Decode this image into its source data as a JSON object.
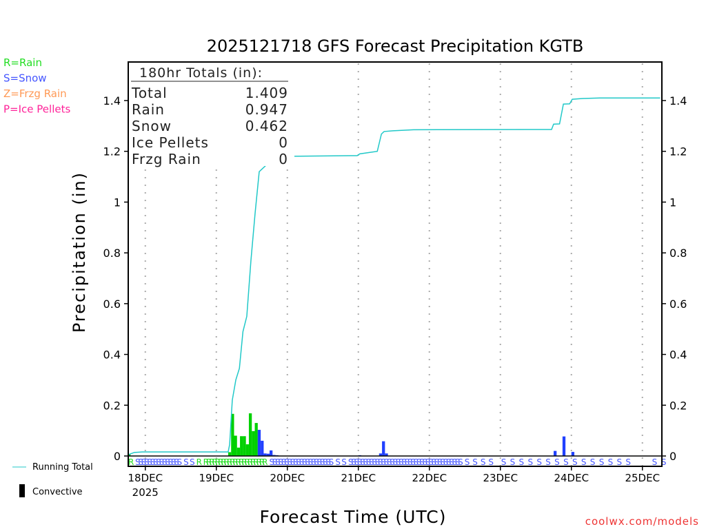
{
  "chart_data": {
    "type": "bar",
    "title": "2025121718 GFS Forecast Precipitation KGTB",
    "xlabel": "Forecast Time (UTC)",
    "ylabel": "Precipitation (in)",
    "ylim": [
      0,
      1.55
    ],
    "xlim_hours": [
      0,
      180
    ],
    "yticks": [
      "0",
      "0.2",
      "0.4",
      "0.6",
      "0.8",
      "1",
      "1.2",
      "1.4"
    ],
    "ytick_values": [
      0,
      0.2,
      0.4,
      0.6,
      0.8,
      1.0,
      1.2,
      1.4
    ],
    "xticks": [
      {
        "hour": 6,
        "label": "18DEC",
        "sub": "2025"
      },
      {
        "hour": 30,
        "label": "19DEC"
      },
      {
        "hour": 54,
        "label": "20DEC"
      },
      {
        "hour": 78,
        "label": "21DEC"
      },
      {
        "hour": 102,
        "label": "22DEC"
      },
      {
        "hour": 126,
        "label": "23DEC"
      },
      {
        "hour": 150,
        "label": "24DEC"
      },
      {
        "hour": 174,
        "label": "25DEC"
      }
    ],
    "type_legend": [
      {
        "label": "R=Rain",
        "color": "#22dd22"
      },
      {
        "label": "S=Snow",
        "color": "#4455ff"
      },
      {
        "label": "Z=Frzg Rain",
        "color": "#ff9955"
      },
      {
        "label": "P=Ice Pellets",
        "color": "#ff2299"
      }
    ],
    "totals": {
      "heading": "180hr Totals (in):",
      "rows": [
        {
          "label": "Total",
          "value": "1.409"
        },
        {
          "label": "Rain",
          "value": "0.947"
        },
        {
          "label": "Snow",
          "value": "0.462"
        },
        {
          "label": "Ice Pellets",
          "value": "0"
        },
        {
          "label": "Frzg Rain",
          "value": "0"
        }
      ]
    },
    "series": [
      {
        "name": "Running Total",
        "type": "line",
        "color": "#20c8c8",
        "points": [
          [
            0.2,
            0.005
          ],
          [
            2.3,
            0.014
          ],
          [
            5,
            0.016
          ],
          [
            34,
            0.016
          ],
          [
            34.5,
            0.045
          ],
          [
            35.4,
            0.22
          ],
          [
            36.6,
            0.3
          ],
          [
            37.8,
            0.345
          ],
          [
            39,
            0.49
          ],
          [
            40.3,
            0.55
          ],
          [
            41.7,
            0.77
          ],
          [
            43.1,
            0.955
          ],
          [
            44.5,
            1.12
          ],
          [
            46.8,
            1.145
          ],
          [
            48.2,
            1.165
          ],
          [
            50,
            1.177
          ],
          [
            52.4,
            1.18
          ],
          [
            77.6,
            1.183
          ],
          [
            78.5,
            1.19
          ],
          [
            81.5,
            1.195
          ],
          [
            84.4,
            1.2
          ],
          [
            85.8,
            1.268
          ],
          [
            86.7,
            1.278
          ],
          [
            89.7,
            1.281
          ],
          [
            96.7,
            1.285
          ],
          [
            143.3,
            1.286
          ],
          [
            144,
            1.307
          ],
          [
            146,
            1.308
          ],
          [
            147.3,
            1.386
          ],
          [
            149.4,
            1.387
          ],
          [
            150.3,
            1.405
          ],
          [
            153.8,
            1.408
          ],
          [
            159.6,
            1.41
          ],
          [
            180,
            1.41
          ]
        ]
      },
      {
        "name": "Rain",
        "type": "bar",
        "color": "#00d000",
        "points": [
          [
            0,
            0.008
          ],
          [
            34,
            0.015
          ],
          [
            35,
            0.166
          ],
          [
            36,
            0.08
          ],
          [
            37,
            0.033
          ],
          [
            38,
            0.078
          ],
          [
            39,
            0.078
          ],
          [
            40,
            0.046
          ],
          [
            41,
            0.168
          ],
          [
            42,
            0.098
          ],
          [
            43,
            0.13
          ]
        ]
      },
      {
        "name": "Snow",
        "type": "bar",
        "color": "#2040ff",
        "points": [
          [
            44,
            0.103
          ],
          [
            45,
            0.06
          ],
          [
            46,
            0.01
          ],
          [
            47,
            0.009
          ],
          [
            48,
            0.022
          ],
          [
            49,
            0.004
          ],
          [
            50,
            0.003
          ],
          [
            78,
            0.003
          ],
          [
            85,
            0.01
          ],
          [
            86,
            0.058
          ],
          [
            87,
            0.01
          ],
          [
            144,
            0.02
          ],
          [
            147,
            0.077
          ],
          [
            150,
            0.016
          ]
        ]
      }
    ],
    "precip_type_runs": [
      {
        "type": "R",
        "color": "#22dd22",
        "start": 0,
        "end": 0,
        "step": 1
      },
      {
        "type": "S",
        "color": "#4455ff",
        "start": 1,
        "end": 15,
        "step": 1
      },
      {
        "type": "S",
        "color": "#4455ff",
        "start": 16,
        "end": 18,
        "step": 2
      },
      {
        "type": "R",
        "color": "#22dd22",
        "start": 21,
        "end": 21,
        "step": 1
      },
      {
        "type": "R",
        "color": "#22dd22",
        "start": 23,
        "end": 43,
        "step": 1
      },
      {
        "type": "S",
        "color": "#4455ff",
        "start": 44,
        "end": 64,
        "step": 1
      },
      {
        "type": "S",
        "color": "#4455ff",
        "start": 66,
        "end": 68,
        "step": 2
      },
      {
        "type": "S",
        "color": "#4455ff",
        "start": 72,
        "end": 109,
        "step": 1
      },
      {
        "type": "S",
        "color": "#4455ff",
        "start": 112,
        "end": 120,
        "step": 2.5
      },
      {
        "type": "S",
        "color": "#4455ff",
        "start": 126,
        "end": 168,
        "step": 3
      },
      {
        "type": "S",
        "color": "#4455ff",
        "start": 177,
        "end": 180,
        "step": 3
      }
    ],
    "bottom_legend": {
      "running_total": "Running Total",
      "convective": "Convective"
    },
    "credit": "coolwx.com/models"
  }
}
